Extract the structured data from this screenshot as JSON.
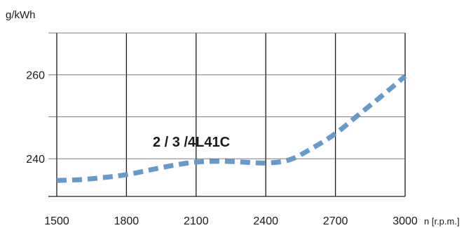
{
  "chart_data": {
    "type": "line",
    "title": "",
    "ylabel": "g/kWh",
    "xlabel": "n [r.p.m.]",
    "x_ticks": [
      1500,
      1800,
      2100,
      2400,
      2700,
      3000
    ],
    "x_tick_labels": [
      "1500",
      "1800",
      "2100",
      "2400",
      "2700",
      "3000"
    ],
    "y_ticks": [
      240,
      260
    ],
    "y_tick_labels": [
      "240",
      "260"
    ],
    "xlim": [
      1500,
      3000
    ],
    "ylim": [
      231,
      270
    ],
    "grid": true,
    "annotation": "2 / 3 /4L41C",
    "series": [
      {
        "color": "#6699cc",
        "style": "dashed",
        "x": [
          1500,
          1600,
          1700,
          1800,
          1900,
          2000,
          2100,
          2200,
          2300,
          2400,
          2500,
          2600,
          2700,
          2800,
          2900,
          3000
        ],
        "y": [
          234.8,
          235.0,
          235.5,
          236.2,
          237.3,
          238.4,
          239.2,
          239.4,
          239.2,
          239.0,
          239.7,
          242.5,
          246.0,
          250.5,
          255.0,
          259.7
        ]
      }
    ]
  }
}
